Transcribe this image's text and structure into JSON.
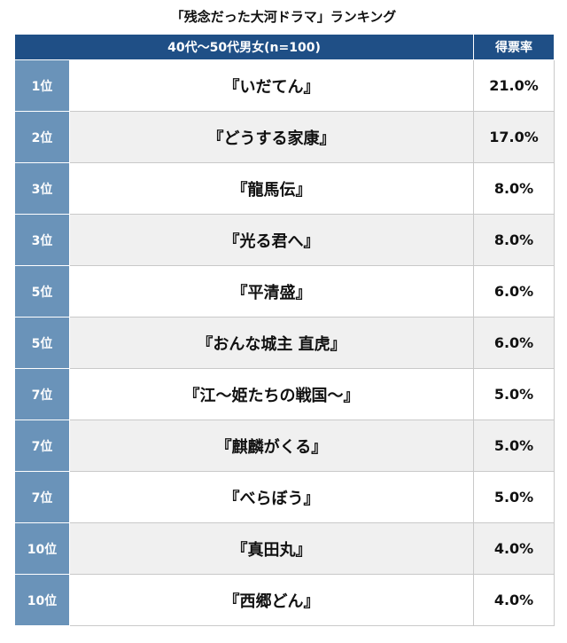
{
  "title": "「残念だった大河ドラマ」ランキング",
  "header": {
    "group": "40代〜50代男女(n=100)",
    "rate": "得票率"
  },
  "rows": [
    {
      "rank": "1位",
      "title": "『いだてん』",
      "rate": "21.0%"
    },
    {
      "rank": "2位",
      "title": "『どうする家康』",
      "rate": "17.0%"
    },
    {
      "rank": "3位",
      "title": "『龍馬伝』",
      "rate": "8.0%"
    },
    {
      "rank": "3位",
      "title": "『光る君へ』",
      "rate": "8.0%"
    },
    {
      "rank": "5位",
      "title": "『平清盛』",
      "rate": "6.0%"
    },
    {
      "rank": "5位",
      "title": "『おんな城主 直虎』",
      "rate": "6.0%"
    },
    {
      "rank": "7位",
      "title": "『江〜姫たちの戦国〜』",
      "rate": "5.0%"
    },
    {
      "rank": "7位",
      "title": "『麒麟がくる』",
      "rate": "5.0%"
    },
    {
      "rank": "7位",
      "title": "『べらぼう』",
      "rate": "5.0%"
    },
    {
      "rank": "10位",
      "title": "『真田丸』",
      "rate": "4.0%"
    },
    {
      "rank": "10位",
      "title": "『西郷どん』",
      "rate": "4.0%"
    }
  ]
}
